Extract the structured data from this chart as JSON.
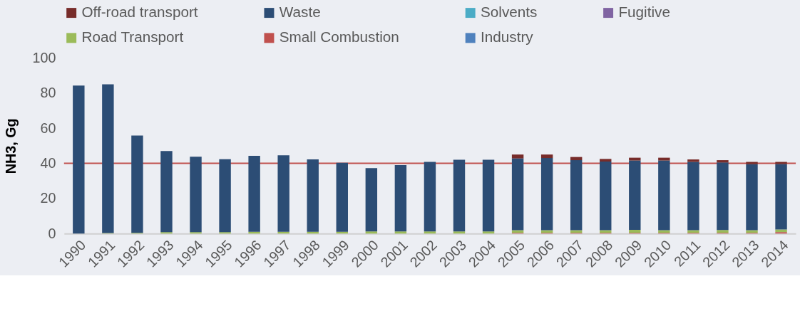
{
  "chart_data": {
    "type": "bar",
    "stacked": true,
    "ylabel": "NH3, Gg",
    "ylim": [
      0,
      100
    ],
    "yticks": [
      0,
      20,
      40,
      60,
      80,
      100
    ],
    "grid": false,
    "legend": "top",
    "categories": [
      "1990",
      "1991",
      "1992",
      "1993",
      "1994",
      "1995",
      "1996",
      "1997",
      "1998",
      "1999",
      "2000",
      "2001",
      "2002",
      "2003",
      "2004",
      "2005",
      "2006",
      "2007",
      "2008",
      "2009",
      "2010",
      "2011",
      "2012",
      "2013",
      "2014"
    ],
    "series": [
      {
        "name": "Industry",
        "color": "#4f81bd",
        "values": [
          0,
          0,
          0,
          0,
          0,
          0,
          0,
          0,
          0,
          0,
          0,
          0,
          0,
          0,
          0,
          0,
          0,
          0,
          0,
          0,
          0,
          0,
          0,
          0,
          0
        ]
      },
      {
        "name": "Small Combustion",
        "color": "#c0504d",
        "values": [
          0,
          0,
          0,
          0,
          0,
          0,
          0,
          0,
          0,
          0,
          0,
          0,
          0,
          0,
          0,
          0.4,
          0.4,
          0.4,
          0.4,
          0.4,
          0.4,
          0.4,
          0.4,
          0.4,
          0.8
        ]
      },
      {
        "name": "Road Transport",
        "color": "#9bbb59",
        "values": [
          null,
          0.3,
          0.4,
          0.8,
          0.8,
          0.8,
          1.0,
          1.0,
          1.0,
          1.0,
          1.2,
          1.2,
          1.2,
          1.2,
          1.2,
          1.5,
          1.5,
          1.5,
          1.5,
          1.7,
          1.5,
          1.5,
          1.6,
          1.5,
          1.5
        ]
      },
      {
        "name": "Fugitive",
        "color": "#8064a2",
        "values": [
          0,
          0,
          0,
          0,
          0,
          0,
          0,
          0,
          0,
          0,
          0,
          0,
          0,
          0,
          0,
          0,
          0,
          0,
          0,
          0,
          0,
          0,
          0,
          0,
          0
        ]
      },
      {
        "name": "Solvents",
        "color": "#4bacc6",
        "values": [
          0,
          0,
          0,
          0,
          0,
          0,
          0,
          0,
          0,
          0,
          0,
          0,
          0,
          0,
          0,
          0,
          0,
          0,
          0,
          0,
          0,
          0,
          0,
          0,
          0
        ]
      },
      {
        "name": "Waste",
        "color": "#2c4d75",
        "values": [
          84.3,
          84.7,
          55.4,
          46.2,
          43.0,
          41.5,
          43.3,
          43.6,
          41.2,
          39.3,
          36.1,
          37.8,
          39.6,
          40.8,
          40.8,
          40.9,
          41.1,
          39.9,
          39.1,
          39.5,
          39.7,
          38.9,
          38.5,
          37.6,
          37.3
        ]
      },
      {
        "name": "Off-road transport",
        "color": "#772c2a",
        "values": [
          0,
          0,
          0,
          0,
          0,
          0,
          0,
          0,
          0,
          0,
          0,
          0,
          0,
          0,
          0,
          2.2,
          2.0,
          1.8,
          1.5,
          1.6,
          1.6,
          1.4,
          1.3,
          1.3,
          1.2
        ]
      }
    ],
    "ref_lines": [
      {
        "axis": "y",
        "value": 40,
        "color": "#c0504d"
      }
    ]
  }
}
